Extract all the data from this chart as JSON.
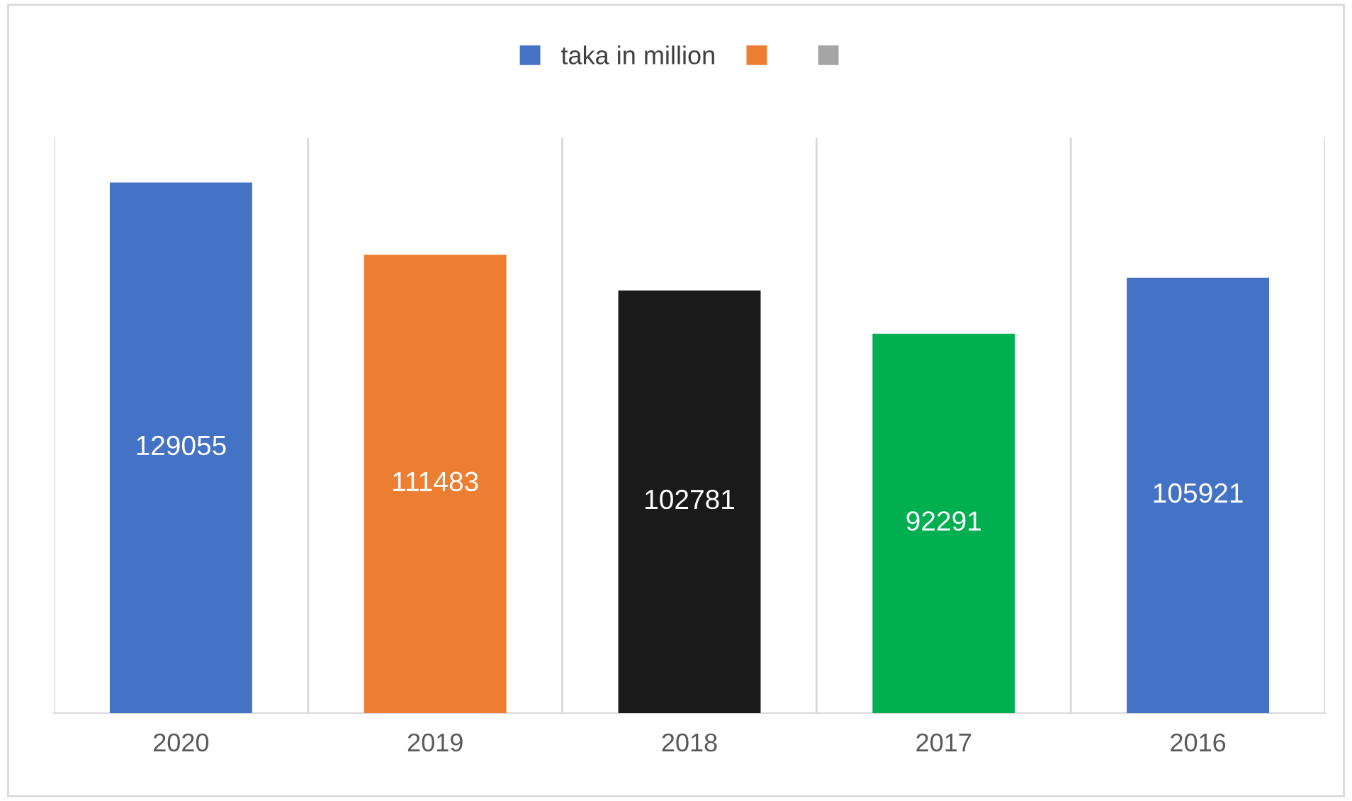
{
  "chart_data": {
    "type": "bar",
    "categories": [
      "2020",
      "2019",
      "2018",
      "2017",
      "2016"
    ],
    "series": [
      {
        "name": "taka in million",
        "colors": [
          "#4472c4",
          "#ed7d31",
          "#1a1a1a",
          "#00b050",
          "#4472c4"
        ],
        "values": [
          129055,
          111483,
          102781,
          92291,
          105921
        ]
      },
      {
        "color": "#ed7d31",
        "values": [
          null,
          null,
          null,
          null,
          null
        ]
      },
      {
        "color": "#a5a5a5",
        "values": [
          null,
          null,
          null,
          null,
          null
        ]
      }
    ],
    "ylim": [
      0,
      140000
    ],
    "tick_labels": "x",
    "data_labels": true,
    "grid": "x",
    "legend": "top"
  }
}
